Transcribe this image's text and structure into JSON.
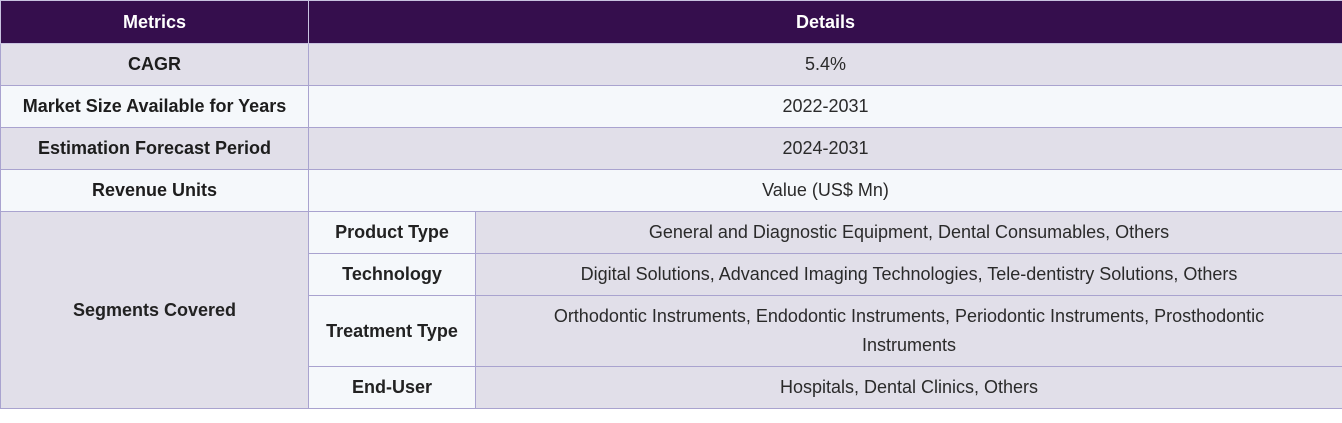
{
  "header": {
    "col1": "Metrics",
    "col2": "Details"
  },
  "rows": [
    {
      "label": "CAGR",
      "value": "5.4%"
    },
    {
      "label": "Market Size Available for Years",
      "value": "2022-2031"
    },
    {
      "label": "Estimation Forecast Period",
      "value": "2024-2031"
    },
    {
      "label": "Revenue Units",
      "value": "Value (US$ Mn)"
    }
  ],
  "segments": {
    "label": "Segments Covered",
    "items": [
      {
        "name": "Product Type",
        "value": "General and Diagnostic Equipment, Dental Consumables, Others"
      },
      {
        "name": "Technology",
        "value": "Digital Solutions, Advanced Imaging Technologies, Tele-dentistry Solutions, Others"
      },
      {
        "name": "Treatment Type",
        "value": "Orthodontic Instruments, Endodontic Instruments, Periodontic Instruments, Prosthodontic Instruments"
      },
      {
        "name": "End-User",
        "value": "Hospitals, Dental Clinics, Others"
      }
    ]
  },
  "colors": {
    "header_bg": "#350e4d",
    "row_shade": "#e1dfe9",
    "row_light": "#f5f8fb",
    "border": "#a9a3cf"
  }
}
